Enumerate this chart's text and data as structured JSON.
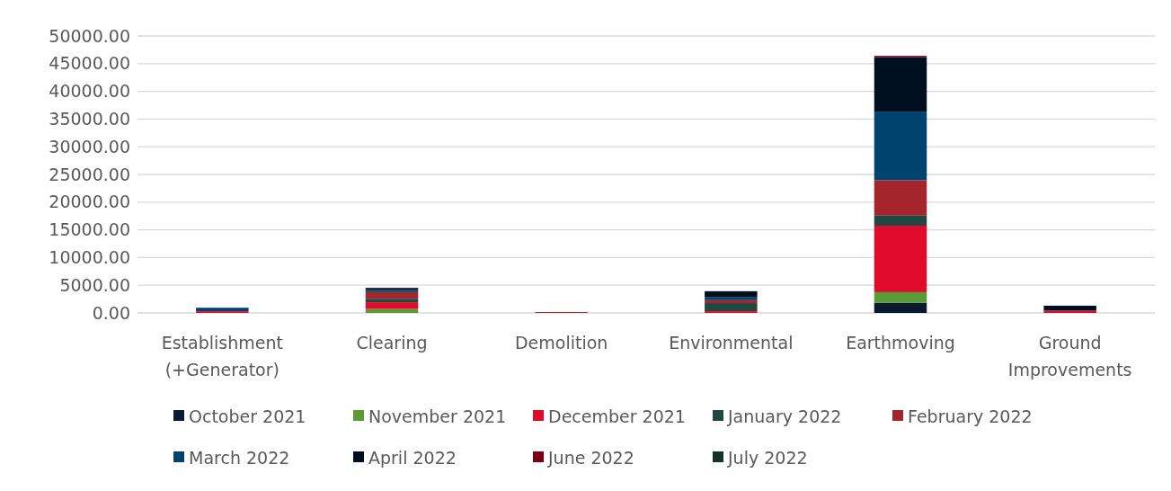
{
  "chart_data": {
    "type": "bar",
    "stacked": true,
    "categories": [
      "Establishment (+Generator)",
      "Clearing",
      "Demolition",
      "Environmental",
      "Earthmoving",
      "Ground Improvements"
    ],
    "series": [
      {
        "name": "October 2021",
        "color": "#0b1a33",
        "values": [
          0,
          0,
          0,
          0,
          1850,
          0
        ]
      },
      {
        "name": "November 2021",
        "color": "#5b9b35",
        "values": [
          0,
          730,
          0,
          0,
          1900,
          0
        ]
      },
      {
        "name": "December 2021",
        "color": "#e00b2c",
        "values": [
          300,
          1200,
          0,
          310,
          12000,
          420
        ]
      },
      {
        "name": "January 2022",
        "color": "#204840",
        "values": [
          0,
          630,
          0,
          1470,
          1900,
          0
        ]
      },
      {
        "name": "February 2022",
        "color": "#a6252c",
        "values": [
          0,
          1200,
          150,
          520,
          6300,
          0
        ]
      },
      {
        "name": "March 2022",
        "color": "#00446e",
        "values": [
          640,
          400,
          0,
          520,
          12400,
          0
        ]
      },
      {
        "name": "April 2022",
        "color": "#000f1f",
        "values": [
          0,
          250,
          0,
          1100,
          9800,
          890
        ]
      },
      {
        "name": "June 2022",
        "color": "#7a0018",
        "values": [
          0,
          0,
          0,
          0,
          260,
          0
        ]
      },
      {
        "name": "July 2022",
        "color": "#16302a",
        "values": [
          0,
          150,
          0,
          0,
          0,
          0
        ]
      }
    ],
    "ylim": [
      0,
      50000
    ],
    "yticks": [
      {
        "value": 0,
        "label": "0.00"
      },
      {
        "value": 5000,
        "label": "5000.00"
      },
      {
        "value": 10000,
        "label": "10000.00"
      },
      {
        "value": 15000,
        "label": "15000.00"
      },
      {
        "value": 20000,
        "label": "20000.00"
      },
      {
        "value": 25000,
        "label": "25000.00"
      },
      {
        "value": 30000,
        "label": "30000.00"
      },
      {
        "value": 35000,
        "label": "35000.00"
      },
      {
        "value": 40000,
        "label": "40000.00"
      },
      {
        "value": 45000,
        "label": "45000.00"
      },
      {
        "value": 50000,
        "label": "50000.00"
      }
    ],
    "grid": "y",
    "legend": "bottom"
  }
}
